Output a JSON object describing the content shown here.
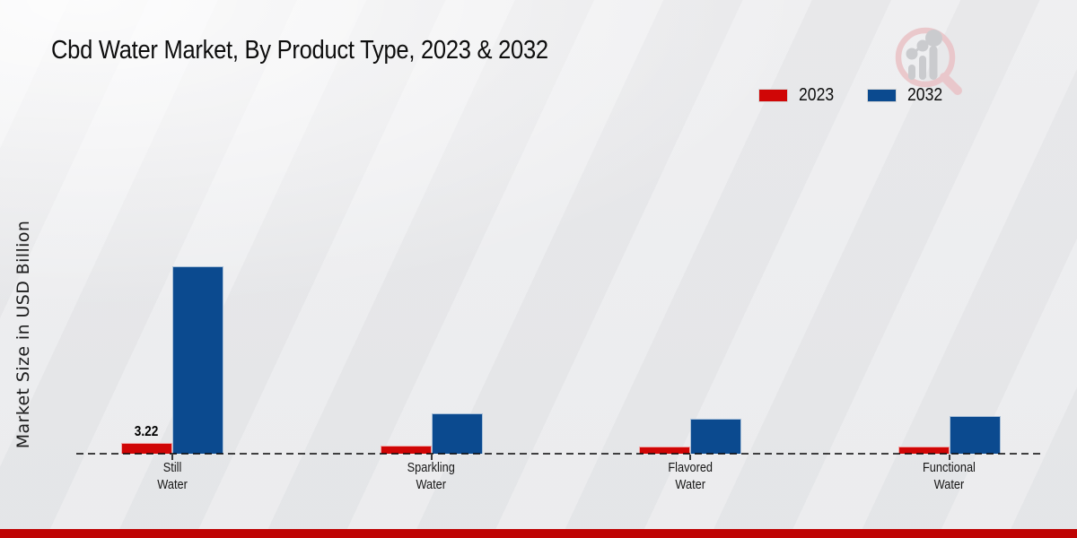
{
  "header": {
    "title": "Cbd Water Market, By Product Type, 2023 & 2032"
  },
  "watermark": {
    "name": "market-research-future-logo",
    "ring_color": "#eac6ca",
    "glyph_color": "#c9cacd"
  },
  "footer": {
    "band_color": "#bf0404"
  },
  "axis": {
    "baseline_color": "#454545"
  },
  "chart_data": {
    "type": "bar",
    "title": "Cbd Water Market, By Product Type, 2023 & 2032",
    "xlabel": "",
    "ylabel": "Market Size in USD Billion",
    "categories": [
      "Still Water",
      "Sparkling Water",
      "Flavored Water",
      "Functional Water"
    ],
    "series": [
      {
        "name": "2023",
        "color": "#d00606",
        "values": [
          3.22,
          2.3,
          1.95,
          2.05
        ],
        "value_labels": [
          "3.22",
          "",
          "",
          ""
        ]
      },
      {
        "name": "2032",
        "color": "#0b4a8f",
        "values": [
          53.8,
          11.6,
          10.05,
          10.85
        ],
        "value_labels": [
          "",
          "",
          "",
          ""
        ]
      }
    ],
    "ylim": [
      0,
      56
    ],
    "gridlines": false,
    "y_axis_ticks_visible": false,
    "baseline_style": "dashed",
    "legend_position": "top-right"
  }
}
